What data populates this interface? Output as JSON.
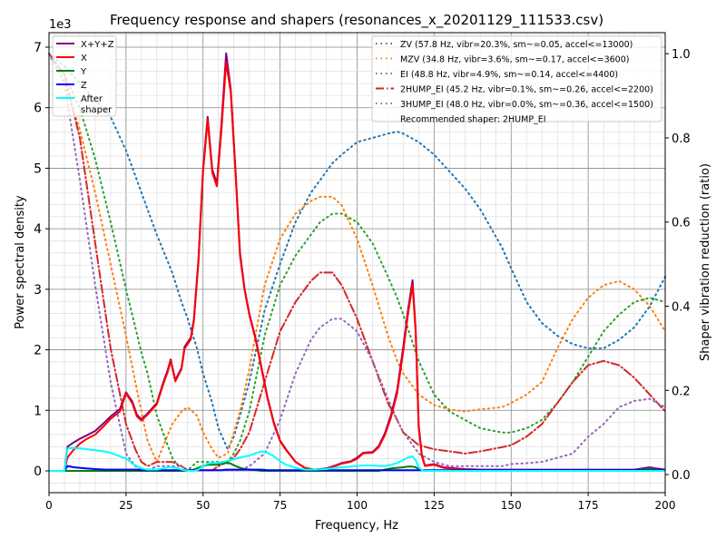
{
  "chart_data": {
    "type": "line",
    "title": "Frequency response and shapers (resonances_x_20201129_111533.csv)",
    "xlabel": "Frequency, Hz",
    "ylabel": "Power spectral density",
    "ylabel_right": "Shaper vibration reduction (ratio)",
    "y_offset_label": "1e3",
    "xlim": [
      0,
      200
    ],
    "ylim": [
      -0.36,
      7.24
    ],
    "ylim_right": [
      -0.043,
      1.05
    ],
    "grid": true,
    "x_ticks": [
      "0",
      "25",
      "50",
      "75",
      "100",
      "125",
      "150",
      "175",
      "200"
    ],
    "y_ticks": [
      "0",
      "1",
      "2",
      "3",
      "4",
      "5",
      "6",
      "7"
    ],
    "y_ticks_right": [
      "0.0",
      "0.2",
      "0.4",
      "0.6",
      "0.8",
      "1.0"
    ],
    "legend_left_placement": "top-left",
    "legend_right_placement": "top-right",
    "psd_x": [
      0,
      5,
      6,
      8,
      10,
      12,
      15,
      18,
      20,
      23,
      25,
      26,
      27,
      28.5,
      30,
      32,
      35,
      37,
      38.5,
      39.5,
      41,
      43,
      44,
      46,
      47,
      48.5,
      50,
      51.5,
      53,
      54.5,
      56,
      57.5,
      59,
      60.5,
      62,
      63.5,
      65,
      67,
      69,
      71,
      73,
      75,
      77,
      80,
      83,
      86,
      90,
      93,
      95,
      98,
      100,
      102,
      105,
      107,
      109,
      111,
      113,
      115,
      116.5,
      118,
      119,
      120,
      121,
      122,
      125,
      128,
      135,
      140,
      150,
      160,
      170,
      180,
      190,
      195,
      197,
      200
    ],
    "psd_series": [
      {
        "name": "X+Y+Z",
        "color": "#800080",
        "values": [
          0,
          0,
          0.4,
          0.47,
          0.53,
          0.58,
          0.66,
          0.8,
          0.9,
          1.02,
          1.3,
          1.22,
          1.15,
          0.93,
          0.85,
          0.95,
          1.12,
          1.45,
          1.66,
          1.84,
          1.5,
          1.7,
          2.05,
          2.2,
          2.5,
          3.5,
          5.0,
          5.85,
          4.98,
          4.75,
          5.75,
          6.9,
          6.3,
          5.0,
          3.6,
          3.0,
          2.6,
          2.2,
          1.7,
          1.2,
          0.8,
          0.5,
          0.35,
          0.15,
          0.05,
          0.02,
          0.04,
          0.09,
          0.13,
          0.16,
          0.22,
          0.3,
          0.31,
          0.41,
          0.62,
          0.92,
          1.33,
          2.05,
          2.65,
          3.15,
          2.35,
          0.75,
          0.27,
          0.09,
          0.11,
          0.06,
          0.03,
          0.02,
          0.02,
          0.02,
          0.02,
          0.02,
          0.02,
          0.06,
          0.04,
          0.02
        ]
      },
      {
        "name": "X",
        "color": "#ff0000",
        "values": [
          0,
          0,
          0.22,
          0.35,
          0.45,
          0.52,
          0.6,
          0.75,
          0.86,
          0.98,
          1.28,
          1.2,
          1.12,
          0.9,
          0.83,
          0.93,
          1.1,
          1.42,
          1.63,
          1.82,
          1.48,
          1.68,
          2.02,
          2.17,
          2.47,
          3.45,
          4.95,
          5.8,
          4.93,
          4.7,
          5.65,
          6.75,
          6.25,
          4.95,
          3.55,
          2.98,
          2.58,
          2.18,
          1.68,
          1.18,
          0.78,
          0.49,
          0.34,
          0.15,
          0.05,
          0.02,
          0.03,
          0.08,
          0.12,
          0.15,
          0.2,
          0.29,
          0.3,
          0.39,
          0.59,
          0.88,
          1.28,
          1.98,
          2.58,
          3.08,
          2.3,
          0.7,
          0.25,
          0.08,
          0.1,
          0.05,
          0.02,
          0,
          0,
          0,
          0,
          0,
          0,
          0,
          0,
          0
        ]
      },
      {
        "name": "Y",
        "color": "#008000",
        "values": [
          0,
          0,
          0,
          0,
          0,
          0,
          0,
          0,
          0,
          0,
          0,
          0,
          0,
          0,
          0,
          0,
          0,
          0,
          0,
          0,
          0,
          0,
          0,
          0.01,
          0.02,
          0.05,
          0.08,
          0.1,
          0.1,
          0.1,
          0.12,
          0.13,
          0.12,
          0.08,
          0.05,
          0.03,
          0.02,
          0.01,
          0,
          0,
          0,
          0,
          0,
          0,
          0,
          0,
          0,
          0,
          0,
          0,
          0,
          0,
          0,
          0,
          0.02,
          0.04,
          0.05,
          0.06,
          0.07,
          0.07,
          0.06,
          0.03,
          0.01,
          0,
          0,
          0,
          0,
          0,
          0,
          0,
          0,
          0,
          0,
          0.04,
          0.02,
          0
        ]
      },
      {
        "name": "Z",
        "color": "#0000ff",
        "values": [
          0,
          0,
          0.08,
          0.06,
          0.05,
          0.04,
          0.03,
          0.02,
          0.02,
          0.02,
          0.02,
          0.02,
          0.02,
          0.02,
          0.01,
          0.01,
          0.01,
          0.01,
          0.01,
          0.01,
          0.01,
          0.01,
          0.01,
          0.01,
          0.01,
          0.01,
          0.01,
          0.01,
          0.01,
          0.01,
          0.01,
          0.02,
          0.02,
          0.02,
          0.02,
          0.02,
          0.02,
          0.02,
          0.02,
          0.01,
          0.01,
          0.01,
          0.01,
          0.01,
          0.01,
          0.01,
          0.01,
          0.01,
          0.01,
          0.01,
          0.01,
          0.01,
          0.01,
          0.01,
          0.01,
          0.01,
          0.01,
          0.01,
          0.01,
          0.01,
          0.01,
          0.01,
          0.01,
          0.01,
          0.01,
          0.01,
          0.01,
          0.01,
          0.01,
          0.01,
          0.01,
          0.01,
          0.01,
          0.01,
          0.01,
          0.01
        ]
      },
      {
        "name": "After\nshaper",
        "color": "#00ffff",
        "values": [
          0,
          0,
          0.37,
          0.38,
          0.37,
          0.36,
          0.34,
          0.32,
          0.3,
          0.24,
          0.2,
          0.17,
          0.12,
          0.08,
          0.04,
          0.02,
          0.02,
          0.04,
          0.06,
          0.06,
          0.05,
          0.02,
          0.01,
          0,
          0,
          0.02,
          0.08,
          0.12,
          0.13,
          0.13,
          0.14,
          0.16,
          0.18,
          0.2,
          0.22,
          0.24,
          0.25,
          0.29,
          0.32,
          0.3,
          0.24,
          0.16,
          0.1,
          0.05,
          0.02,
          0.02,
          0.03,
          0.05,
          0.06,
          0.07,
          0.08,
          0.09,
          0.09,
          0.08,
          0.08,
          0.1,
          0.13,
          0.18,
          0.22,
          0.24,
          0.18,
          0.06,
          0.01,
          0,
          0,
          0,
          0,
          0,
          0,
          0,
          0,
          0,
          0,
          0,
          0,
          0
        ]
      }
    ],
    "shaper_x": [
      0,
      5,
      10,
      15,
      20,
      25,
      28,
      30,
      32,
      35,
      40,
      43,
      45,
      48,
      50,
      53,
      55,
      58,
      60,
      62,
      65,
      70,
      75,
      80,
      85,
      88,
      90,
      92,
      95,
      100,
      105,
      110,
      113,
      115,
      120,
      125,
      130,
      135,
      140,
      147,
      150,
      155,
      160,
      165,
      170,
      175,
      180,
      185,
      190,
      195,
      200
    ],
    "shaper_series": [
      {
        "name": "ZV (57.8 Hz, vibr=20.3%, sm~=0.05, accel<=13000)",
        "color": "#1f77b4",
        "style": "dotted",
        "values": [
          1.0,
          0.97,
          0.93,
          0.89,
          0.85,
          0.77,
          0.71,
          0.67,
          0.63,
          0.57,
          0.48,
          0.41,
          0.37,
          0.3,
          0.24,
          0.17,
          0.11,
          0.06,
          0.09,
          0.14,
          0.22,
          0.39,
          0.5,
          0.6,
          0.67,
          0.7,
          0.72,
          0.74,
          0.76,
          0.79,
          0.8,
          0.81,
          0.815,
          0.81,
          0.79,
          0.76,
          0.72,
          0.68,
          0.63,
          0.54,
          0.49,
          0.41,
          0.36,
          0.33,
          0.31,
          0.3,
          0.3,
          0.32,
          0.35,
          0.4,
          0.47
        ]
      },
      {
        "name": "MZV (34.8 Hz, vibr=3.6%, sm~=0.17, accel<=3600)",
        "color": "#ff7f0e",
        "style": "dotted",
        "values": [
          1.0,
          0.93,
          0.82,
          0.67,
          0.5,
          0.33,
          0.22,
          0.15,
          0.08,
          0.03,
          0.12,
          0.15,
          0.16,
          0.14,
          0.1,
          0.06,
          0.04,
          0.05,
          0.1,
          0.15,
          0.25,
          0.45,
          0.56,
          0.62,
          0.65,
          0.66,
          0.66,
          0.66,
          0.64,
          0.56,
          0.45,
          0.33,
          0.27,
          0.24,
          0.19,
          0.165,
          0.155,
          0.15,
          0.155,
          0.16,
          0.17,
          0.19,
          0.22,
          0.3,
          0.37,
          0.42,
          0.45,
          0.46,
          0.44,
          0.4,
          0.34
        ]
      },
      {
        "name": "EI (48.8 Hz, vibr=4.9%, sm~=0.14, accel<=4400)",
        "color": "#2ca02c",
        "style": "dotted",
        "values": [
          1.0,
          0.95,
          0.87,
          0.75,
          0.6,
          0.44,
          0.35,
          0.29,
          0.24,
          0.14,
          0.04,
          0.01,
          0.01,
          0.03,
          0.03,
          0.03,
          0.03,
          0.03,
          0.05,
          0.08,
          0.15,
          0.33,
          0.45,
          0.52,
          0.57,
          0.6,
          0.61,
          0.62,
          0.62,
          0.6,
          0.55,
          0.47,
          0.42,
          0.38,
          0.27,
          0.19,
          0.15,
          0.13,
          0.11,
          0.1,
          0.1,
          0.11,
          0.13,
          0.17,
          0.22,
          0.28,
          0.34,
          0.38,
          0.41,
          0.42,
          0.41
        ]
      },
      {
        "name": "2HUMP_EI (45.2 Hz, vibr=0.1%, sm~=0.26, accel<=2200)",
        "color": "#d62728",
        "style": "dashdot",
        "values": [
          1.0,
          0.95,
          0.8,
          0.55,
          0.3,
          0.12,
          0.06,
          0.03,
          0.02,
          0.03,
          0.03,
          0.02,
          0.01,
          0.01,
          0.01,
          0.01,
          0.02,
          0.03,
          0.04,
          0.06,
          0.1,
          0.22,
          0.34,
          0.41,
          0.46,
          0.48,
          0.48,
          0.48,
          0.45,
          0.37,
          0.27,
          0.17,
          0.13,
          0.1,
          0.07,
          0.06,
          0.055,
          0.05,
          0.055,
          0.065,
          0.07,
          0.09,
          0.12,
          0.17,
          0.22,
          0.26,
          0.27,
          0.26,
          0.23,
          0.19,
          0.15
        ]
      },
      {
        "name": "3HUMP_EI (48.0 Hz, vibr=0.0%, sm~=0.36, accel<=1500)",
        "color": "#9467bd",
        "style": "dotted",
        "values": [
          1.0,
          0.93,
          0.7,
          0.45,
          0.22,
          0.05,
          0.02,
          0.01,
          0.01,
          0.02,
          0.02,
          0.02,
          0.01,
          0.01,
          0.01,
          0.01,
          0.01,
          0.01,
          0.01,
          0.01,
          0.02,
          0.05,
          0.13,
          0.24,
          0.32,
          0.35,
          0.36,
          0.37,
          0.37,
          0.34,
          0.27,
          0.18,
          0.13,
          0.1,
          0.05,
          0.03,
          0.02,
          0.02,
          0.02,
          0.02,
          0.025,
          0.027,
          0.03,
          0.04,
          0.05,
          0.09,
          0.12,
          0.16,
          0.175,
          0.18,
          0.16
        ]
      }
    ],
    "recommended_label": "Recommended shaper: 2HUMP_EI"
  }
}
